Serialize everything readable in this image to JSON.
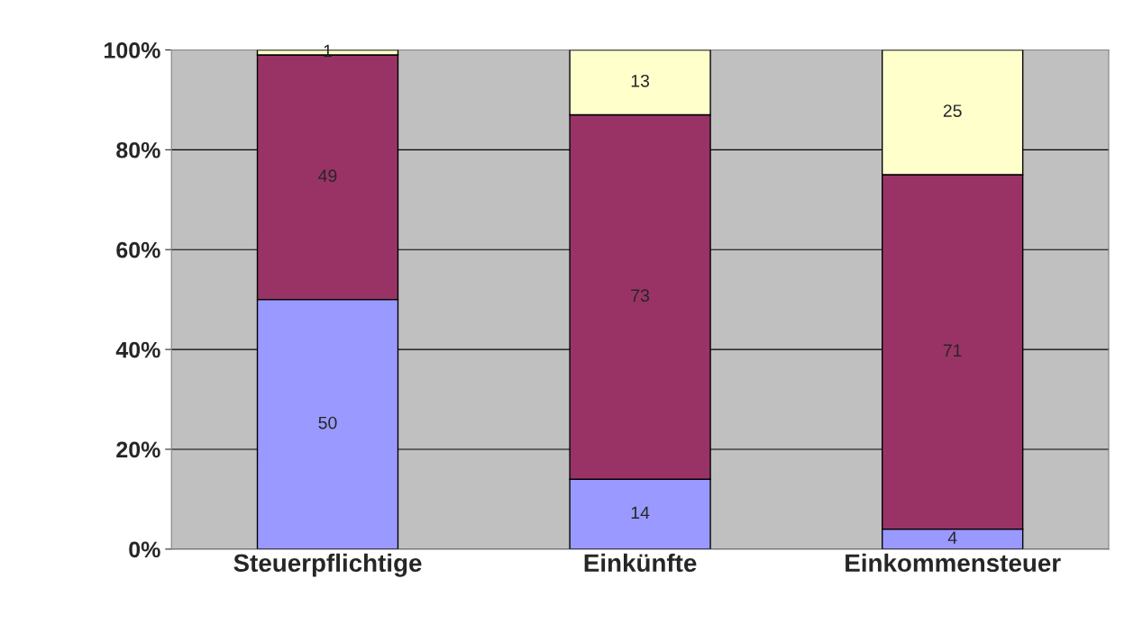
{
  "chart_data": {
    "type": "bar",
    "stacked": true,
    "categories": [
      "Steuerpflichtige",
      "Einkünfte",
      "Einkommensteuer"
    ],
    "series": [
      {
        "color": "#9999ff",
        "values": [
          50,
          14,
          4
        ]
      },
      {
        "color": "#993366",
        "values": [
          49,
          73,
          71
        ]
      },
      {
        "color": "#ffffcc",
        "values": [
          1,
          13,
          25
        ]
      }
    ],
    "ylim": [
      0,
      100
    ],
    "yticks": [
      {
        "value": 0,
        "label": "0%"
      },
      {
        "value": 20,
        "label": "20%"
      },
      {
        "value": 40,
        "label": "40%"
      },
      {
        "value": 60,
        "label": "60%"
      },
      {
        "value": 80,
        "label": "80%"
      },
      {
        "value": 100,
        "label": "100%"
      }
    ],
    "grid": "y",
    "data_labels": true,
    "legend": false
  }
}
